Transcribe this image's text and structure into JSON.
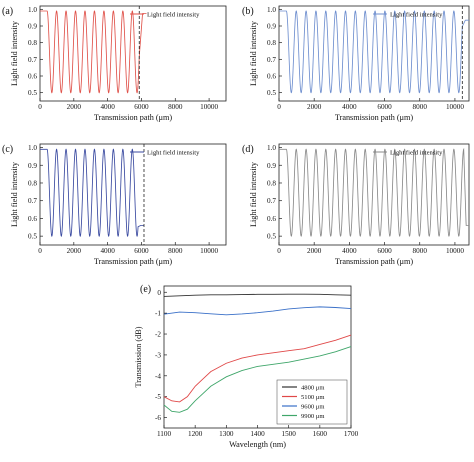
{
  "chart_data": [
    {
      "id": "a",
      "type": "line",
      "panel_label": "(a)",
      "xlabel": "Transmission path (μm)",
      "ylabel": "Light field intensity",
      "xlim": [
        0,
        11000
      ],
      "ylim": [
        0.45,
        1.02
      ],
      "xticks": [
        0,
        2000,
        4000,
        6000,
        8000,
        10000
      ],
      "yticks": [
        0.5,
        0.6,
        0.7,
        0.8,
        0.9,
        1.0
      ],
      "xtick_labels": [
        "0",
        "2000",
        "4000",
        "6000",
        "8000",
        "10000"
      ],
      "ytick_labels": [
        "0.5",
        "0.6",
        "0.7",
        "0.8",
        "0.9",
        "1.0"
      ],
      "legend": "Light field intensity",
      "legend_position": "top-right",
      "line_color": "#e0524a",
      "flat_until": 420,
      "period": 560,
      "min_value": 0.5,
      "max_value": 0.99,
      "end_x": 5870,
      "tail_value": 0.975,
      "tail_end_x": 6300,
      "marker_x": 5870
    },
    {
      "id": "b",
      "type": "line",
      "panel_label": "(b)",
      "xlabel": "Transmission path (μm)",
      "ylabel": "Light field intensity",
      "xlim": [
        0,
        10800
      ],
      "ylim": [
        0.45,
        1.02
      ],
      "xticks": [
        0,
        2000,
        4000,
        6000,
        8000,
        10000
      ],
      "yticks": [
        0.5,
        0.6,
        0.7,
        0.8,
        0.9,
        1.0
      ],
      "xtick_labels": [
        "0",
        "2000",
        "4000",
        "6000",
        "8000",
        "10000"
      ],
      "ytick_labels": [
        "0.5",
        "0.6",
        "0.7",
        "0.8",
        "0.9",
        "1.0"
      ],
      "legend": "Light field intensity",
      "legend_position": "top-right",
      "line_color": "#6f8fcf",
      "flat_until": 420,
      "period": 560,
      "min_value": 0.5,
      "max_value": 0.99,
      "end_x": 10420,
      "tail_value": 0.935,
      "tail_end_x": 10800,
      "marker_x": 10420
    },
    {
      "id": "c",
      "type": "line",
      "panel_label": "(c)",
      "xlabel": "Transmission path (μm)",
      "ylabel": "Light field intensity",
      "xlim": [
        0,
        11000
      ],
      "ylim": [
        0.45,
        1.02
      ],
      "xticks": [
        0,
        2000,
        4000,
        6000,
        8000,
        10000
      ],
      "yticks": [
        0.5,
        0.6,
        0.7,
        0.8,
        0.9,
        1.0
      ],
      "xtick_labels": [
        "0",
        "2000",
        "4000",
        "6000",
        "8000",
        "10000"
      ],
      "ytick_labels": [
        "0.5",
        "0.6",
        "0.7",
        "0.8",
        "0.9",
        "1.0"
      ],
      "legend": "Light field intensity",
      "legend_position": "top-right",
      "line_color": "#3a4aa0",
      "flat_until": 420,
      "period": 560,
      "min_value": 0.5,
      "max_value": 0.99,
      "end_x": 5800,
      "tail_value": 0.56,
      "tail_end_x": 6150,
      "marker_x": 6150
    },
    {
      "id": "d",
      "type": "line",
      "panel_label": "(d)",
      "xlabel": "Transmission path (μm)",
      "ylabel": "Light field intensity",
      "xlim": [
        0,
        10800
      ],
      "ylim": [
        0.45,
        1.02
      ],
      "xticks": [
        0,
        2000,
        4000,
        6000,
        8000,
        10000
      ],
      "yticks": [
        0.5,
        0.6,
        0.7,
        0.8,
        0.9,
        1.0
      ],
      "xtick_labels": [
        "0",
        "2000",
        "4000",
        "6000",
        "8000",
        "10000"
      ],
      "ytick_labels": [
        "0.5",
        "0.6",
        "0.7",
        "0.8",
        "0.9",
        "1.0"
      ],
      "legend": "Light field intensity",
      "legend_position": "top-right",
      "line_color": "#8a8a8a",
      "flat_until": 420,
      "period": 560,
      "min_value": 0.5,
      "max_value": 0.99,
      "end_x": 10500,
      "tail_value": 0.56,
      "tail_end_x": 10800,
      "marker_x": null
    },
    {
      "id": "e",
      "type": "line",
      "panel_label": "(e)",
      "xlabel": "Wavelength (nm)",
      "ylabel": "Transmission (dB)",
      "xlim": [
        1100,
        1700
      ],
      "ylim": [
        -6.5,
        0.3
      ],
      "xticks": [
        1100,
        1200,
        1300,
        1400,
        1500,
        1600,
        1700
      ],
      "yticks": [
        0,
        -1,
        -2,
        -3,
        -4,
        -5,
        -6
      ],
      "xtick_labels": [
        "1100",
        "1200",
        "1300",
        "1400",
        "1500",
        "1600",
        "1700"
      ],
      "ytick_labels": [
        "0",
        "-1",
        "-2",
        "-3",
        "-4",
        "-5",
        "-6"
      ],
      "legend_position": "bottom-right",
      "series": [
        {
          "name": "4800 μm",
          "color": "#333333",
          "x": [
            1100,
            1150,
            1200,
            1250,
            1300,
            1350,
            1400,
            1450,
            1500,
            1550,
            1600,
            1650,
            1700
          ],
          "y": [
            -0.2,
            -0.17,
            -0.14,
            -0.12,
            -0.12,
            -0.11,
            -0.1,
            -0.1,
            -0.09,
            -0.09,
            -0.1,
            -0.12,
            -0.14
          ]
        },
        {
          "name": "5100 μm",
          "color": "#e04848",
          "x": [
            1100,
            1125,
            1150,
            1175,
            1200,
            1225,
            1250,
            1300,
            1350,
            1400,
            1450,
            1500,
            1550,
            1600,
            1650,
            1700
          ],
          "y": [
            -5.0,
            -5.2,
            -5.25,
            -5.0,
            -4.5,
            -4.15,
            -3.8,
            -3.4,
            -3.15,
            -3.0,
            -2.9,
            -2.8,
            -2.7,
            -2.5,
            -2.3,
            -2.05
          ]
        },
        {
          "name": "9600 μm",
          "color": "#3a70c8",
          "x": [
            1100,
            1150,
            1200,
            1250,
            1300,
            1350,
            1400,
            1450,
            1500,
            1550,
            1600,
            1650,
            1700
          ],
          "y": [
            -1.05,
            -0.95,
            -0.98,
            -1.03,
            -1.08,
            -1.04,
            -0.98,
            -0.9,
            -0.8,
            -0.74,
            -0.7,
            -0.73,
            -0.78
          ]
        },
        {
          "name": "9900 μm",
          "color": "#3fa66a",
          "x": [
            1100,
            1125,
            1150,
            1175,
            1200,
            1225,
            1250,
            1300,
            1350,
            1400,
            1450,
            1500,
            1550,
            1600,
            1650,
            1700
          ],
          "y": [
            -5.4,
            -5.7,
            -5.75,
            -5.6,
            -5.2,
            -4.85,
            -4.5,
            -4.05,
            -3.75,
            -3.55,
            -3.45,
            -3.35,
            -3.2,
            -3.05,
            -2.85,
            -2.6
          ]
        }
      ]
    }
  ]
}
